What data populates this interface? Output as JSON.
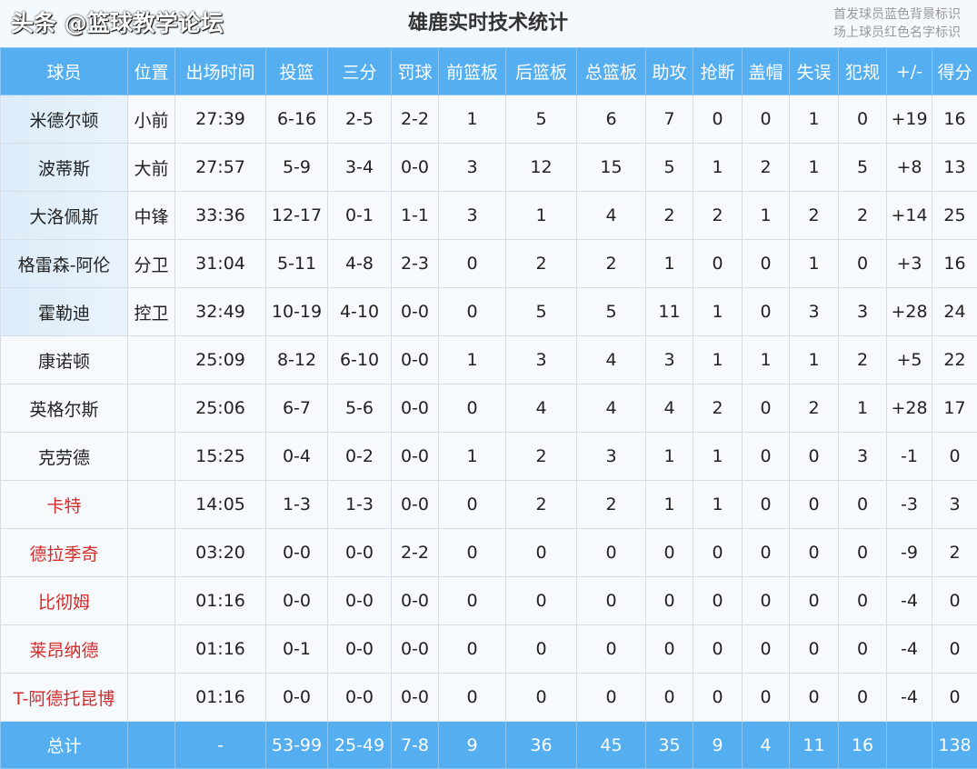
{
  "title": "雄鹿实时技术统计",
  "notes": [
    "首发球员蓝色背景标识",
    "场上球员红色名字标识"
  ],
  "colors": {
    "header": "#55aef0",
    "starter_bg": "#dcecfa",
    "on_court_name": "#d42a2a"
  },
  "columns": [
    "球员",
    "位置",
    "出场时间",
    "投篮",
    "三分",
    "罚球",
    "前篮板",
    "后篮板",
    "总篮板",
    "助攻",
    "抢断",
    "盖帽",
    "失误",
    "犯规",
    "+/-",
    "得分"
  ],
  "rows": [
    {
      "starter": true,
      "on_court": false,
      "cells": [
        "米德尔顿",
        "小前",
        "27:39",
        "6-16",
        "2-5",
        "2-2",
        "1",
        "5",
        "6",
        "7",
        "0",
        "0",
        "1",
        "0",
        "+19",
        "16"
      ]
    },
    {
      "starter": true,
      "on_court": false,
      "cells": [
        "波蒂斯",
        "大前",
        "27:57",
        "5-9",
        "3-4",
        "0-0",
        "3",
        "12",
        "15",
        "5",
        "1",
        "2",
        "1",
        "5",
        "+8",
        "13"
      ]
    },
    {
      "starter": true,
      "on_court": false,
      "cells": [
        "大洛佩斯",
        "中锋",
        "33:36",
        "12-17",
        "0-1",
        "1-1",
        "3",
        "1",
        "4",
        "2",
        "2",
        "1",
        "2",
        "2",
        "+14",
        "25"
      ]
    },
    {
      "starter": true,
      "on_court": false,
      "cells": [
        "格雷森-阿伦",
        "分卫",
        "31:04",
        "5-11",
        "4-8",
        "2-3",
        "0",
        "2",
        "2",
        "1",
        "0",
        "0",
        "1",
        "0",
        "+3",
        "16"
      ]
    },
    {
      "starter": true,
      "on_court": false,
      "cells": [
        "霍勒迪",
        "控卫",
        "32:49",
        "10-19",
        "4-10",
        "0-0",
        "0",
        "5",
        "5",
        "11",
        "1",
        "0",
        "3",
        "3",
        "+28",
        "24"
      ]
    },
    {
      "starter": false,
      "on_court": false,
      "cells": [
        "康诺顿",
        "",
        "25:09",
        "8-12",
        "6-10",
        "0-0",
        "1",
        "3",
        "4",
        "3",
        "1",
        "1",
        "1",
        "2",
        "+5",
        "22"
      ]
    },
    {
      "starter": false,
      "on_court": false,
      "cells": [
        "英格尔斯",
        "",
        "25:06",
        "6-7",
        "5-6",
        "0-0",
        "0",
        "4",
        "4",
        "4",
        "2",
        "0",
        "2",
        "1",
        "+28",
        "17"
      ]
    },
    {
      "starter": false,
      "on_court": false,
      "cells": [
        "克劳德",
        "",
        "15:25",
        "0-4",
        "0-2",
        "0-0",
        "1",
        "2",
        "3",
        "1",
        "1",
        "0",
        "0",
        "3",
        "-1",
        "0"
      ]
    },
    {
      "starter": false,
      "on_court": true,
      "cells": [
        "卡特",
        "",
        "14:05",
        "1-3",
        "1-3",
        "0-0",
        "0",
        "2",
        "2",
        "1",
        "1",
        "0",
        "0",
        "0",
        "-3",
        "3"
      ]
    },
    {
      "starter": false,
      "on_court": true,
      "cells": [
        "德拉季奇",
        "",
        "03:20",
        "0-0",
        "0-0",
        "2-2",
        "0",
        "0",
        "0",
        "0",
        "0",
        "0",
        "0",
        "0",
        "-9",
        "2"
      ]
    },
    {
      "starter": false,
      "on_court": true,
      "cells": [
        "比彻姆",
        "",
        "01:16",
        "0-0",
        "0-0",
        "0-0",
        "0",
        "0",
        "0",
        "0",
        "0",
        "0",
        "0",
        "0",
        "-4",
        "0"
      ]
    },
    {
      "starter": false,
      "on_court": true,
      "cells": [
        "莱昂纳德",
        "",
        "01:16",
        "0-1",
        "0-0",
        "0-0",
        "0",
        "0",
        "0",
        "0",
        "0",
        "0",
        "0",
        "0",
        "-4",
        "0"
      ]
    },
    {
      "starter": false,
      "on_court": true,
      "cells": [
        "T-阿德托昆博",
        "",
        "01:16",
        "0-0",
        "0-0",
        "0-0",
        "0",
        "0",
        "0",
        "0",
        "0",
        "0",
        "0",
        "0",
        "-4",
        "0"
      ]
    }
  ],
  "totals": [
    "总计",
    "",
    "-",
    "53-99",
    "25-49",
    "7-8",
    "9",
    "36",
    "45",
    "35",
    "9",
    "4",
    "11",
    "16",
    "",
    "138"
  ],
  "watermark": "头条 @篮球教学论坛"
}
